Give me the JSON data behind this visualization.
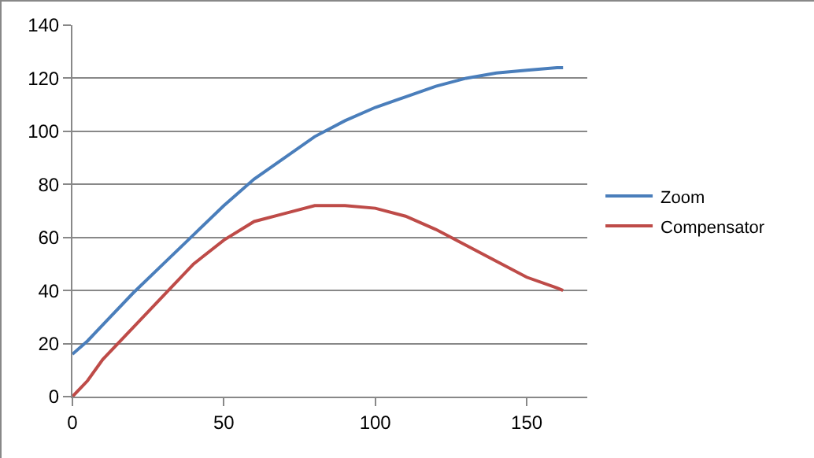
{
  "chart_data": {
    "type": "line",
    "x": [
      0,
      5,
      10,
      20,
      30,
      40,
      50,
      60,
      70,
      80,
      90,
      100,
      110,
      120,
      130,
      140,
      150,
      160,
      162
    ],
    "series": [
      {
        "name": "Zoom",
        "color": "#4a7ebb",
        "values": [
          16,
          21,
          27,
          39,
          50,
          61,
          72,
          82,
          90,
          98,
          104,
          109,
          113,
          117,
          120,
          122,
          123,
          124,
          124
        ]
      },
      {
        "name": "Compensator",
        "color": "#be4b48",
        "values": [
          0,
          6,
          14,
          26,
          38,
          50,
          59,
          66,
          69,
          72,
          72,
          71,
          68,
          63,
          57,
          51,
          45,
          41,
          40
        ]
      }
    ],
    "xlim": [
      0,
      170
    ],
    "xticks": [
      0,
      50,
      100,
      150
    ],
    "ylim": [
      0,
      140
    ],
    "yticks": [
      0,
      20,
      40,
      60,
      80,
      100,
      120,
      140
    ],
    "grid": "y",
    "legend": "right",
    "marker": "none",
    "line_style": "solid"
  }
}
